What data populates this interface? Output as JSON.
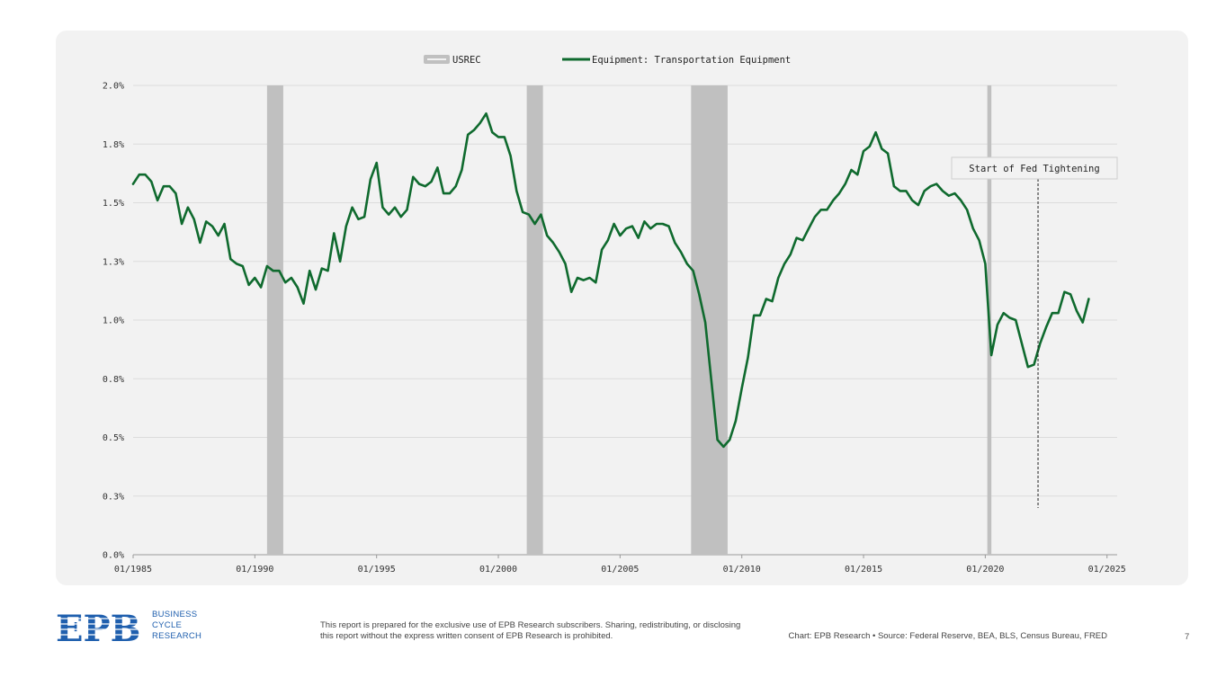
{
  "chart_data": {
    "type": "line",
    "title": "",
    "xlabel": "",
    "ylabel": "",
    "legend": [
      {
        "name": "USREC",
        "color": "#c0c0c0",
        "kind": "band"
      },
      {
        "name": "Equipment: Transportation Equipment",
        "color": "#0f6a2e",
        "kind": "line"
      }
    ],
    "legend_position": "top-center",
    "x_range": [
      "1985-01",
      "2025-06"
    ],
    "x_ticks": [
      "01/1985",
      "01/1990",
      "01/1995",
      "01/2000",
      "01/2005",
      "01/2010",
      "01/2015",
      "01/2020",
      "01/2025"
    ],
    "y_range": [
      0,
      2
    ],
    "y_ticks": [
      "0.0%",
      "0.3%",
      "0.5%",
      "0.8%",
      "1.0%",
      "1.3%",
      "1.5%",
      "1.8%",
      "2.0%"
    ],
    "grid": "horizontal",
    "recessions": [
      {
        "start": "1990-07",
        "end": "1991-03"
      },
      {
        "start": "2001-03",
        "end": "2001-11"
      },
      {
        "start": "2007-12",
        "end": "2009-06"
      },
      {
        "start": "2020-02",
        "end": "2020-04"
      }
    ],
    "series": [
      {
        "name": "Equipment: Transportation Equipment",
        "color": "#0f6a2e",
        "x": [
          "1985-01",
          "1985-04",
          "1985-07",
          "1985-10",
          "1986-01",
          "1986-04",
          "1986-07",
          "1986-10",
          "1987-01",
          "1987-04",
          "1987-07",
          "1987-10",
          "1988-01",
          "1988-04",
          "1988-07",
          "1988-10",
          "1989-01",
          "1989-04",
          "1989-07",
          "1989-10",
          "1990-01",
          "1990-04",
          "1990-07",
          "1990-10",
          "1991-01",
          "1991-04",
          "1991-07",
          "1991-10",
          "1992-01",
          "1992-04",
          "1992-07",
          "1992-10",
          "1993-01",
          "1993-04",
          "1993-07",
          "1993-10",
          "1994-01",
          "1994-04",
          "1994-07",
          "1994-10",
          "1995-01",
          "1995-04",
          "1995-07",
          "1995-10",
          "1996-01",
          "1996-04",
          "1996-07",
          "1996-10",
          "1997-01",
          "1997-04",
          "1997-07",
          "1997-10",
          "1998-01",
          "1998-04",
          "1998-07",
          "1998-10",
          "1999-01",
          "1999-04",
          "1999-07",
          "1999-10",
          "2000-01",
          "2000-04",
          "2000-07",
          "2000-10",
          "2001-01",
          "2001-04",
          "2001-07",
          "2001-10",
          "2002-01",
          "2002-04",
          "2002-07",
          "2002-10",
          "2003-01",
          "2003-04",
          "2003-07",
          "2003-10",
          "2004-01",
          "2004-04",
          "2004-07",
          "2004-10",
          "2005-01",
          "2005-04",
          "2005-07",
          "2005-10",
          "2006-01",
          "2006-04",
          "2006-07",
          "2006-10",
          "2007-01",
          "2007-04",
          "2007-07",
          "2007-10",
          "2008-01",
          "2008-04",
          "2008-07",
          "2008-10",
          "2009-01",
          "2009-04",
          "2009-07",
          "2009-10",
          "2010-01",
          "2010-04",
          "2010-07",
          "2010-10",
          "2011-01",
          "2011-04",
          "2011-07",
          "2011-10",
          "2012-01",
          "2012-04",
          "2012-07",
          "2012-10",
          "2013-01",
          "2013-04",
          "2013-07",
          "2013-10",
          "2014-01",
          "2014-04",
          "2014-07",
          "2014-10",
          "2015-01",
          "2015-04",
          "2015-07",
          "2015-10",
          "2016-01",
          "2016-04",
          "2016-07",
          "2016-10",
          "2017-01",
          "2017-04",
          "2017-07",
          "2017-10",
          "2018-01",
          "2018-04",
          "2018-07",
          "2018-10",
          "2019-01",
          "2019-04",
          "2019-07",
          "2019-10",
          "2020-01",
          "2020-04",
          "2020-07",
          "2020-10",
          "2021-01",
          "2021-04",
          "2021-07",
          "2021-10",
          "2022-01",
          "2022-04",
          "2022-07",
          "2022-10",
          "2023-01",
          "2023-04",
          "2023-07",
          "2023-10",
          "2024-01",
          "2024-04"
        ],
        "values": [
          1.58,
          1.62,
          1.62,
          1.59,
          1.51,
          1.57,
          1.57,
          1.54,
          1.41,
          1.48,
          1.43,
          1.33,
          1.42,
          1.4,
          1.36,
          1.41,
          1.26,
          1.24,
          1.23,
          1.15,
          1.18,
          1.14,
          1.23,
          1.21,
          1.21,
          1.16,
          1.18,
          1.14,
          1.07,
          1.21,
          1.13,
          1.22,
          1.21,
          1.37,
          1.25,
          1.4,
          1.48,
          1.43,
          1.44,
          1.6,
          1.67,
          1.48,
          1.45,
          1.48,
          1.44,
          1.47,
          1.61,
          1.58,
          1.57,
          1.59,
          1.65,
          1.54,
          1.54,
          1.57,
          1.64,
          1.79,
          1.81,
          1.84,
          1.88,
          1.8,
          1.78,
          1.78,
          1.7,
          1.55,
          1.46,
          1.45,
          1.41,
          1.45,
          1.36,
          1.33,
          1.29,
          1.24,
          1.12,
          1.18,
          1.17,
          1.18,
          1.16,
          1.3,
          1.34,
          1.41,
          1.36,
          1.39,
          1.4,
          1.35,
          1.42,
          1.39,
          1.41,
          1.41,
          1.4,
          1.33,
          1.29,
          1.24,
          1.21,
          1.11,
          0.99,
          0.74,
          0.49,
          0.46,
          0.49,
          0.57,
          0.71,
          0.84,
          1.02,
          1.02,
          1.09,
          1.08,
          1.18,
          1.24,
          1.28,
          1.35,
          1.34,
          1.39,
          1.44,
          1.47,
          1.47,
          1.51,
          1.54,
          1.58,
          1.64,
          1.62,
          1.72,
          1.74,
          1.8,
          1.73,
          1.71,
          1.57,
          1.55,
          1.55,
          1.51,
          1.49,
          1.55,
          1.57,
          1.58,
          1.55,
          1.53,
          1.54,
          1.51,
          1.47,
          1.39,
          1.34,
          1.24,
          0.85,
          0.98,
          1.03,
          1.01,
          1.0,
          0.9,
          0.8,
          0.81,
          0.9,
          0.97,
          1.03,
          1.03,
          1.12,
          1.11,
          1.04,
          0.99,
          1.09
        ]
      }
    ],
    "annotations": [
      {
        "text": "Start of Fed Tightening",
        "x": "2022-03"
      }
    ]
  },
  "footer": {
    "logo_text": "EPB",
    "logo_sub": [
      "BUSINESS",
      "CYCLE",
      "RESEARCH"
    ],
    "disclaimer": "This report is prepared for the exclusive use of EPB Research subscribers. Sharing, redistributing, or disclosing this report without the express written consent of EPB Research is prohibited.",
    "source": "Chart: EPB Research  •  Source: Federal Reserve, BEA, BLS, Census Bureau, FRED",
    "page_number": "7"
  }
}
